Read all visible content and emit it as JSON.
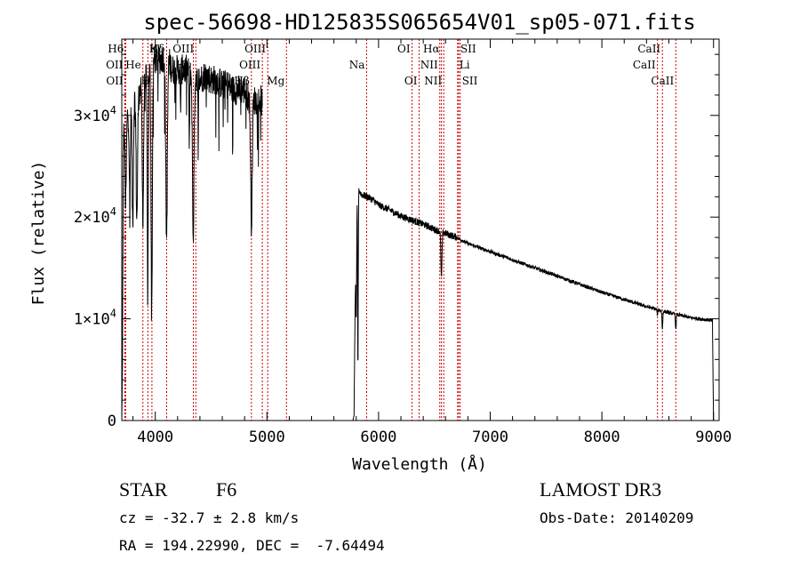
{
  "chart_data": {
    "type": "line",
    "title": "spec-56698-HD125835S065654V01_sp05-071.fits",
    "xlabel": "Wavelength (Å)",
    "ylabel": "Flux (relative)",
    "xlim": [
      3700,
      9050
    ],
    "ylim": [
      0,
      37500
    ],
    "x_ticks": [
      4000,
      5000,
      6000,
      7000,
      8000,
      9000
    ],
    "x_tick_labels": [
      "4000",
      "5000",
      "6000",
      "7000",
      "8000",
      "9000"
    ],
    "y_ticks": [
      0,
      10000,
      20000,
      30000
    ],
    "y_tick_labels": [
      {
        "id": "y0",
        "mantissa": "0",
        "exp": ""
      },
      {
        "id": "y1",
        "mantissa": "1×10",
        "exp": "4"
      },
      {
        "id": "y2",
        "mantissa": "2×10",
        "exp": "4"
      },
      {
        "id": "y3",
        "mantissa": "3×10",
        "exp": "4"
      }
    ],
    "series": [
      {
        "name": "flux",
        "continuum": [
          [
            3700,
            0
          ],
          [
            3705,
            4000
          ],
          [
            3715,
            28000
          ],
          [
            3750,
            30000
          ],
          [
            3800,
            31500
          ],
          [
            3850,
            32000
          ],
          [
            3900,
            33500
          ],
          [
            3950,
            34500
          ],
          [
            4000,
            35500
          ],
          [
            4050,
            35500
          ],
          [
            4100,
            36000
          ],
          [
            4150,
            34500
          ],
          [
            4200,
            34500
          ],
          [
            4250,
            34500
          ],
          [
            4300,
            34500
          ],
          [
            4350,
            34000
          ],
          [
            4400,
            33500
          ],
          [
            4450,
            34000
          ],
          [
            4500,
            33500
          ],
          [
            4550,
            33500
          ],
          [
            4600,
            33000
          ],
          [
            4650,
            33000
          ],
          [
            4700,
            32500
          ],
          [
            4750,
            32500
          ],
          [
            4800,
            32500
          ],
          [
            4850,
            31500
          ],
          [
            4900,
            31500
          ],
          [
            4950,
            31500
          ],
          [
            4960,
            31000
          ],
          [
            5750,
            0
          ],
          [
            5770,
            0
          ],
          [
            5780,
            500
          ],
          [
            5800,
            22500
          ],
          [
            5820,
            22700
          ],
          [
            5850,
            22200
          ],
          [
            5900,
            22000
          ],
          [
            5950,
            21700
          ],
          [
            6000,
            21200
          ],
          [
            6100,
            20700
          ],
          [
            6200,
            20100
          ],
          [
            6300,
            19700
          ],
          [
            6400,
            19300
          ],
          [
            6500,
            18800
          ],
          [
            6600,
            18400
          ],
          [
            6700,
            18000
          ],
          [
            6800,
            17400
          ],
          [
            7000,
            16600
          ],
          [
            7200,
            15800
          ],
          [
            7400,
            15000
          ],
          [
            7600,
            14200
          ],
          [
            7800,
            13400
          ],
          [
            8000,
            12600
          ],
          [
            8200,
            11900
          ],
          [
            8400,
            11200
          ],
          [
            8600,
            10600
          ],
          [
            8800,
            10100
          ],
          [
            8950,
            9900
          ],
          [
            8990,
            9800
          ],
          [
            9000,
            0
          ]
        ],
        "absorption_features": [
          {
            "center": 3735,
            "width": 8,
            "depth": 8000
          },
          {
            "center": 3772,
            "width": 7,
            "depth": 9000
          },
          {
            "center": 3798,
            "width": 8,
            "depth": 12000
          },
          {
            "center": 3835,
            "width": 9,
            "depth": 12000
          },
          {
            "center": 3889,
            "width": 9,
            "depth": 13000
          },
          {
            "center": 3933,
            "width": 7,
            "depth": 20000
          },
          {
            "center": 3968,
            "width": 8,
            "depth": 24000
          },
          {
            "center": 4101,
            "width": 10,
            "depth": 18000
          },
          {
            "center": 4226,
            "width": 4,
            "depth": 4000
          },
          {
            "center": 4305,
            "width": 5,
            "depth": 7000
          },
          {
            "center": 4340,
            "width": 10,
            "depth": 16000
          },
          {
            "center": 4383,
            "width": 4,
            "depth": 4000
          },
          {
            "center": 4861,
            "width": 10,
            "depth": 12000
          },
          {
            "center": 5800,
            "width": 5,
            "depth": 12000
          },
          {
            "center": 5815,
            "width": 4,
            "depth": 18000
          },
          {
            "center": 6563,
            "width": 7,
            "depth": 4500
          },
          {
            "center": 8498,
            "width": 4,
            "depth": 600
          },
          {
            "center": 8542,
            "width": 5,
            "depth": 1800
          },
          {
            "center": 8662,
            "width": 5,
            "depth": 1500
          }
        ]
      }
    ],
    "line_markers": [
      {
        "name": "H6",
        "x": 3735,
        "row": 0,
        "dx": -1
      },
      {
        "name": "OII",
        "x": 3727,
        "row": 1,
        "dx": -1
      },
      {
        "name": "OII",
        "x": 3729,
        "row": 2,
        "dx": -1
      },
      {
        "name": "He",
        "x": 3889,
        "row": 1,
        "dx": -1
      },
      {
        "name": "H",
        "x": 3970,
        "row": 2,
        "dx": -1
      },
      {
        "name": "K",
        "x": 3934,
        "row": 0,
        "dx": 1
      },
      {
        "name": "Hδ",
        "x": 4102,
        "row": 0,
        "dx": -1
      },
      {
        "name": "OIII",
        "x": 4363,
        "row": 0,
        "dx": -1
      },
      {
        "name": "Hγ",
        "x": 4341,
        "row": 1,
        "dx": -1
      },
      {
        "name": "Hβ",
        "x": 4861,
        "row": 3,
        "dx": -1
      },
      {
        "name": "OIII",
        "x": 4959,
        "row": 1,
        "dx": -1
      },
      {
        "name": "OIII",
        "x": 5007,
        "row": 0,
        "dx": -1
      },
      {
        "name": "Mg",
        "x": 5175,
        "row": 3,
        "dx": -1
      },
      {
        "name": "Na",
        "x": 5893,
        "row": 1,
        "dx": -1
      },
      {
        "name": "OI",
        "x": 6300,
        "row": 0,
        "dx": -1
      },
      {
        "name": "OI",
        "x": 6363,
        "row": 2,
        "dx": -1
      },
      {
        "name": "NII",
        "x": 6548,
        "row": 1,
        "dx": -1
      },
      {
        "name": "Hα",
        "x": 6563,
        "row": 0,
        "dx": -1
      },
      {
        "name": "NII",
        "x": 6584,
        "row": 2,
        "dx": -1
      },
      {
        "name": "Li",
        "x": 6708,
        "row": 1,
        "dx": 1
      },
      {
        "name": "SII",
        "x": 6717,
        "row": 0,
        "dx": 1
      },
      {
        "name": "SII",
        "x": 6731,
        "row": 2,
        "dx": 1
      },
      {
        "name": "CaII",
        "x": 8498,
        "row": 1,
        "dx": -1
      },
      {
        "name": "CaII",
        "x": 8542,
        "row": 0,
        "dx": -1
      },
      {
        "name": "CaII",
        "x": 8662,
        "row": 2,
        "dx": -1
      }
    ]
  },
  "info": {
    "object_class": "STAR",
    "subclass": "F6",
    "survey": "LAMOST DR3",
    "redshift": "cz = -32.7 ± 2.8 km/s",
    "obs_date": "Obs-Date: 20140209",
    "coords": "RA = 194.22990, DEC =  -7.64494"
  },
  "colors": {
    "line_marker": "#cc0000",
    "spectrum": "#000000",
    "axes": "#000000",
    "background": "#ffffff"
  }
}
